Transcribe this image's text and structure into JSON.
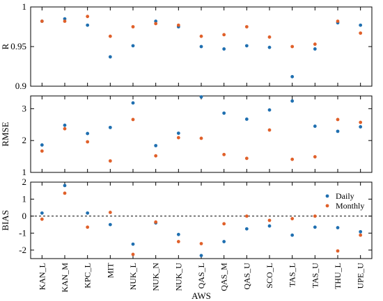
{
  "chart_data": {
    "type": "scatter",
    "xlabel": "AWS",
    "categories": [
      "KAN_L",
      "KAN_M",
      "KPC_L",
      "MIT",
      "NUK_L",
      "NUK_N",
      "NUK_U",
      "QAS_L",
      "QAS_M",
      "QAS_U",
      "SCO_L",
      "TAS_L",
      "TAS_U",
      "THU_L",
      "UPE_U"
    ],
    "colors": {
      "Daily": "#1f6fb0",
      "Monthly": "#e0602a"
    },
    "legend": {
      "placement": "right",
      "panel": "BIAS",
      "entries": [
        "Daily",
        "Monthly"
      ]
    },
    "panels": [
      {
        "ylabel": "R",
        "ylim": [
          0.9,
          1
        ],
        "yticks": [
          0.9,
          0.95,
          1
        ],
        "ytick_labels": [
          "0.9",
          "0.95",
          "1"
        ],
        "series": [
          {
            "name": "Daily",
            "values": [
              0.982,
              0.985,
              0.977,
              0.937,
              0.951,
              0.982,
              0.975,
              0.95,
              0.947,
              0.951,
              0.949,
              0.912,
              0.947,
              0.98,
              0.977
            ]
          },
          {
            "name": "Monthly",
            "values": [
              0.982,
              0.982,
              0.988,
              0.963,
              0.975,
              0.979,
              0.977,
              0.963,
              0.965,
              0.975,
              0.962,
              0.95,
              0.953,
              0.982,
              0.967
            ]
          }
        ]
      },
      {
        "ylabel": "RMSE",
        "ylim": [
          1,
          3.4
        ],
        "yticks": [
          1,
          2,
          3
        ],
        "ytick_labels": [
          "1",
          "2",
          "3"
        ],
        "series": [
          {
            "name": "Daily",
            "values": [
              1.86,
              2.48,
              2.22,
              2.41,
              3.18,
              1.84,
              2.23,
              3.37,
              2.86,
              2.67,
              2.96,
              3.24,
              2.45,
              2.29,
              2.43
            ]
          },
          {
            "name": "Monthly",
            "values": [
              1.67,
              2.37,
              1.96,
              1.36,
              2.66,
              1.52,
              2.09,
              2.07,
              1.56,
              1.44,
              2.33,
              1.41,
              1.49,
              2.66,
              2.57
            ]
          }
        ]
      },
      {
        "ylabel": "BIAS",
        "ylim": [
          -2.5,
          2
        ],
        "yticks": [
          -2,
          -1,
          0,
          1,
          2
        ],
        "ytick_labels": [
          "-2",
          "-1",
          "0",
          "1",
          "2"
        ],
        "zero_line": true,
        "series": [
          {
            "name": "Daily",
            "values": [
              0.18,
              1.8,
              0.18,
              -0.5,
              -1.65,
              -0.4,
              -1.08,
              -2.32,
              -1.5,
              -0.75,
              -0.58,
              -1.12,
              -0.65,
              -0.68,
              -0.92
            ]
          },
          {
            "name": "Monthly",
            "values": [
              -0.18,
              1.35,
              -0.65,
              0.22,
              -2.25,
              -0.35,
              -1.5,
              -1.62,
              -0.45,
              0.0,
              -0.25,
              -0.15,
              0.0,
              -2.05,
              -1.12
            ]
          }
        ]
      }
    ]
  }
}
